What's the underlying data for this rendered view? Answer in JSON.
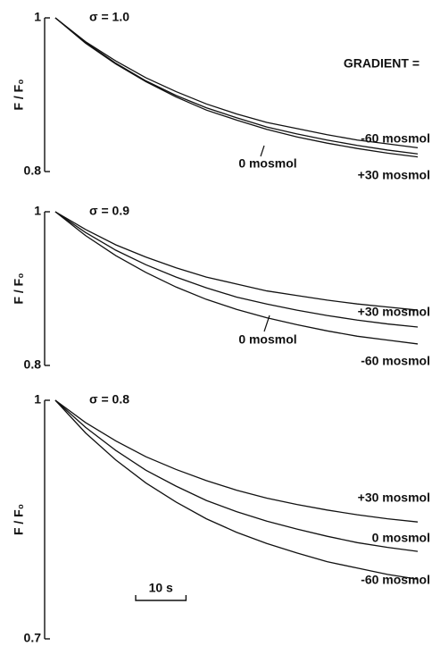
{
  "chart_data": [
    {
      "type": "line",
      "title": "σ = 1.0",
      "annotation": "GRADIENT =",
      "ylabel": "F / F₀",
      "x": [
        0,
        6,
        12,
        18,
        24,
        30,
        36,
        42,
        48,
        54,
        60,
        66,
        72
      ],
      "xlim": [
        0,
        72
      ],
      "ylim": [
        0.8,
        1
      ],
      "yticks": [
        0.8,
        1
      ],
      "series": [
        {
          "name": "-60 mosmol",
          "color": "#111",
          "values": [
            1,
            0.969,
            0.944,
            0.922,
            0.904,
            0.888,
            0.875,
            0.864,
            0.856,
            0.848,
            0.841,
            0.836,
            0.831
          ]
        },
        {
          "name": "0 mosmol",
          "color": "#111",
          "values": [
            1,
            0.968,
            0.941,
            0.918,
            0.899,
            0.883,
            0.87,
            0.858,
            0.849,
            0.841,
            0.834,
            0.828,
            0.823
          ]
        },
        {
          "name": "+30 mosmol",
          "color": "#111",
          "values": [
            1,
            0.967,
            0.94,
            0.917,
            0.897,
            0.88,
            0.867,
            0.855,
            0.845,
            0.837,
            0.83,
            0.824,
            0.819
          ]
        }
      ]
    },
    {
      "type": "line",
      "title": "σ = 0.9",
      "ylabel": "F / F₀",
      "x": [
        0,
        6,
        12,
        18,
        24,
        30,
        36,
        42,
        48,
        54,
        60,
        66,
        72
      ],
      "xlim": [
        0,
        72
      ],
      "ylim": [
        0.8,
        1
      ],
      "yticks": [
        0.8,
        1
      ],
      "series": [
        {
          "name": "+30 mosmol",
          "color": "#111",
          "values": [
            1,
            0.977,
            0.957,
            0.941,
            0.927,
            0.915,
            0.906,
            0.897,
            0.891,
            0.885,
            0.88,
            0.876,
            0.872
          ]
        },
        {
          "name": "0 mosmol",
          "color": "#111",
          "values": [
            1,
            0.973,
            0.95,
            0.931,
            0.915,
            0.901,
            0.889,
            0.88,
            0.872,
            0.865,
            0.859,
            0.854,
            0.85
          ]
        },
        {
          "name": "-60 mosmol",
          "color": "#111",
          "values": [
            1,
            0.969,
            0.943,
            0.921,
            0.902,
            0.886,
            0.873,
            0.862,
            0.853,
            0.845,
            0.838,
            0.833,
            0.828
          ]
        }
      ]
    },
    {
      "type": "line",
      "title": "σ = 0.8",
      "ylabel": "F / F₀",
      "x": [
        0,
        6,
        12,
        18,
        24,
        30,
        36,
        42,
        48,
        54,
        60,
        66,
        72
      ],
      "xlim": [
        0,
        72
      ],
      "ylim": [
        0.7,
        1
      ],
      "yticks": [
        0.7,
        1
      ],
      "scale_bar": {
        "value": 10,
        "label": "10 s"
      },
      "series": [
        {
          "name": "+30 mosmol",
          "color": "#111",
          "values": [
            1,
            0.972,
            0.949,
            0.929,
            0.913,
            0.899,
            0.887,
            0.877,
            0.869,
            0.862,
            0.856,
            0.851,
            0.847
          ]
        },
        {
          "name": "0 mosmol",
          "color": "#111",
          "values": [
            1,
            0.966,
            0.937,
            0.912,
            0.892,
            0.874,
            0.86,
            0.848,
            0.838,
            0.829,
            0.821,
            0.815,
            0.81
          ]
        },
        {
          "name": "-60 mosmol",
          "color": "#111",
          "values": [
            1,
            0.959,
            0.925,
            0.896,
            0.872,
            0.851,
            0.834,
            0.82,
            0.808,
            0.797,
            0.789,
            0.781,
            0.775
          ]
        }
      ]
    }
  ]
}
